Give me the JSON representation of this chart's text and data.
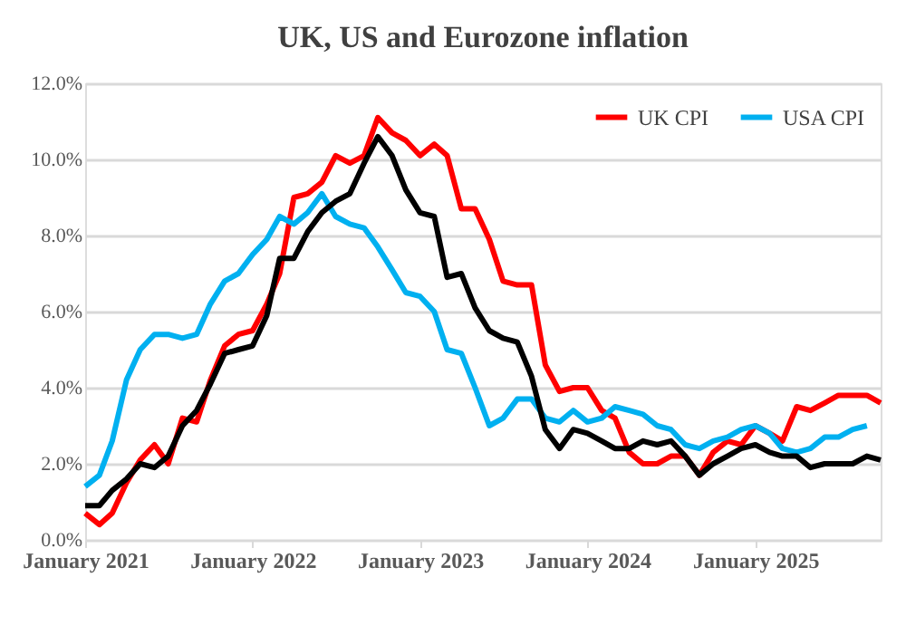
{
  "chart_data": {
    "type": "line",
    "title": "UK, US and Eurozone inflation",
    "x": [
      "2021-01",
      "2021-02",
      "2021-03",
      "2021-04",
      "2021-05",
      "2021-06",
      "2021-07",
      "2021-08",
      "2021-09",
      "2021-10",
      "2021-11",
      "2021-12",
      "2022-01",
      "2022-02",
      "2022-03",
      "2022-04",
      "2022-05",
      "2022-06",
      "2022-07",
      "2022-08",
      "2022-09",
      "2022-10",
      "2022-11",
      "2022-12",
      "2023-01",
      "2023-02",
      "2023-03",
      "2023-04",
      "2023-05",
      "2023-06",
      "2023-07",
      "2023-08",
      "2023-09",
      "2023-10",
      "2023-11",
      "2023-12",
      "2024-01",
      "2024-02",
      "2024-03",
      "2024-04",
      "2024-05",
      "2024-06",
      "2024-07",
      "2024-08",
      "2024-09",
      "2024-10",
      "2024-11",
      "2024-12",
      "2025-01",
      "2025-02",
      "2025-03",
      "2025-04",
      "2025-05",
      "2025-06",
      "2025-07",
      "2025-08",
      "2025-09",
      "2025-10"
    ],
    "series": [
      {
        "name": "UK CPI",
        "color": "#ff0000",
        "values": [
          0.7,
          0.4,
          0.7,
          1.5,
          2.1,
          2.5,
          2.0,
          3.2,
          3.1,
          4.2,
          5.1,
          5.4,
          5.5,
          6.2,
          7.0,
          9.0,
          9.1,
          9.4,
          10.1,
          9.9,
          10.1,
          11.1,
          10.7,
          10.5,
          10.1,
          10.4,
          10.1,
          8.7,
          8.7,
          7.9,
          6.8,
          6.7,
          6.7,
          4.6,
          3.9,
          4.0,
          4.0,
          3.4,
          3.2,
          2.3,
          2.0,
          2.0,
          2.2,
          2.2,
          1.7,
          2.3,
          2.6,
          2.5,
          3.0,
          2.8,
          2.6,
          3.5,
          3.4,
          3.6,
          3.8,
          3.8,
          3.8,
          3.6
        ]
      },
      {
        "name": "USA CPI",
        "color": "#00b0f0",
        "values": [
          1.4,
          1.7,
          2.6,
          4.2,
          5.0,
          5.4,
          5.4,
          5.3,
          5.4,
          6.2,
          6.8,
          7.0,
          7.5,
          7.9,
          8.5,
          8.3,
          8.6,
          9.1,
          8.5,
          8.3,
          8.2,
          7.7,
          7.1,
          6.5,
          6.4,
          6.0,
          5.0,
          4.9,
          4.0,
          3.0,
          3.2,
          3.7,
          3.7,
          3.2,
          3.1,
          3.4,
          3.1,
          3.2,
          3.5,
          3.4,
          3.3,
          3.0,
          2.9,
          2.5,
          2.4,
          2.6,
          2.7,
          2.9,
          3.0,
          2.8,
          2.4,
          2.3,
          2.4,
          2.7,
          2.7,
          2.9,
          3.0,
          null
        ]
      },
      {
        "color": "#000000",
        "values": [
          0.9,
          0.9,
          1.3,
          1.6,
          2.0,
          1.9,
          2.2,
          3.0,
          3.4,
          4.1,
          4.9,
          5.0,
          5.1,
          5.9,
          7.4,
          7.4,
          8.1,
          8.6,
          8.9,
          9.1,
          9.9,
          10.6,
          10.1,
          9.2,
          8.6,
          8.5,
          6.9,
          7.0,
          6.1,
          5.5,
          5.3,
          5.2,
          4.3,
          2.9,
          2.4,
          2.9,
          2.8,
          2.6,
          2.4,
          2.4,
          2.6,
          2.5,
          2.6,
          2.2,
          1.7,
          2.0,
          2.2,
          2.4,
          2.5,
          2.3,
          2.2,
          2.2,
          1.9,
          2.0,
          2.0,
          2.0,
          2.2,
          2.1
        ]
      }
    ],
    "xlim": [
      "2021-01",
      "2025-10"
    ],
    "xticks": [
      {
        "value": "2021-01",
        "label": "January 2021"
      },
      {
        "value": "2022-01",
        "label": "January 2022"
      },
      {
        "value": "2023-01",
        "label": "January 2023"
      },
      {
        "value": "2024-01",
        "label": "January 2024"
      },
      {
        "value": "2025-01",
        "label": "January 2025"
      }
    ],
    "ylim": [
      0,
      12
    ],
    "yticks": [
      {
        "value": 0,
        "label": "0.0%"
      },
      {
        "value": 2,
        "label": "2.0%"
      },
      {
        "value": 4,
        "label": "4.0%"
      },
      {
        "value": 6,
        "label": "6.0%"
      },
      {
        "value": 8,
        "label": "8.0%"
      },
      {
        "value": 10,
        "label": "10.0%"
      },
      {
        "value": 12,
        "label": "12.0%"
      }
    ],
    "grid": "y",
    "legend": "top right",
    "marker": "none",
    "line_style": "solid"
  }
}
